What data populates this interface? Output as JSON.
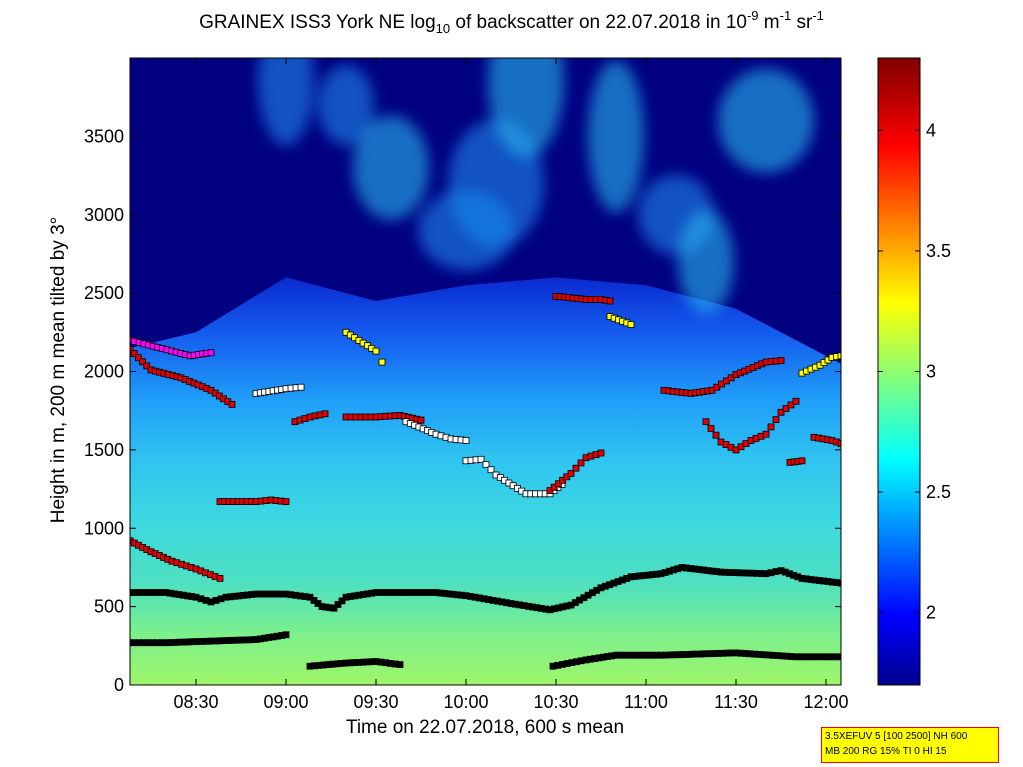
{
  "title": {
    "main": "GRAINEX ISS3 York NE log",
    "main_sub": "10",
    "middle": " of backscatter on 22.07.2018 in 10",
    "exp1": "-9",
    "unit1": " m",
    "exp2": "-1",
    "unit2": " sr",
    "exp3": "-1"
  },
  "info_box": {
    "line1": "3.5XEFUV 5 [100 2500] NH 600",
    "line2": "MB 200 RG 15% TI 0 HI 15"
  },
  "colors": {
    "plot_background": "#000080",
    "marker_black": "#000000",
    "marker_red": "#e00000",
    "marker_yellow": "#ffff00",
    "marker_white": "#ffffff",
    "marker_magenta": "#ff00ff",
    "marker_cyan": "#40e0e0"
  },
  "chart_data": {
    "type": "heatmap",
    "title": "GRAINEX ISS3 York NE log10 of backscatter on 22.07.2018 in 10^-9 m^-1 sr^-1",
    "xlabel": "Time on 22.07.2018, 600 s mean",
    "ylabel": "Height in m, 200 m mean tilted by 3°",
    "xlim_minutes": [
      488,
      725
    ],
    "ylim": [
      0,
      4000
    ],
    "x_ticks": [
      "08:30",
      "09:00",
      "09:30",
      "10:00",
      "10:30",
      "11:00",
      "11:30",
      "12:00"
    ],
    "x_tick_minutes": [
      510,
      540,
      570,
      600,
      630,
      660,
      690,
      720
    ],
    "y_ticks": [
      0,
      500,
      1000,
      1500,
      2000,
      2500,
      3000,
      3500
    ],
    "colorbar": {
      "colormap": "jet",
      "clim": [
        1.7,
        4.3
      ],
      "ticks": [
        2,
        2.5,
        3,
        3.5,
        4
      ],
      "tick_labels": [
        "2",
        "2.5",
        "3",
        "3.5",
        "4"
      ]
    },
    "backscatter_profile": {
      "heights": [
        0,
        250,
        500,
        750,
        1000,
        1250,
        1500,
        1750,
        2000,
        2250,
        2500
      ],
      "log10_values": [
        2.85,
        2.82,
        2.75,
        2.7,
        2.65,
        2.6,
        2.55,
        2.5,
        2.4,
        2.25,
        2.1
      ]
    },
    "aerosol_top_height": [
      {
        "t": 488,
        "h": 2150
      },
      {
        "t": 510,
        "h": 2250
      },
      {
        "t": 540,
        "h": 2600
      },
      {
        "t": 570,
        "h": 2450
      },
      {
        "t": 600,
        "h": 2550
      },
      {
        "t": 630,
        "h": 2600
      },
      {
        "t": 660,
        "h": 2550
      },
      {
        "t": 690,
        "h": 2400
      },
      {
        "t": 710,
        "h": 2200
      },
      {
        "t": 725,
        "h": 2050
      }
    ],
    "series": [
      {
        "color": "black",
        "points": [
          [
            488,
            590
          ],
          [
            500,
            590
          ],
          [
            510,
            560
          ],
          [
            515,
            530
          ],
          [
            520,
            560
          ],
          [
            530,
            580
          ],
          [
            540,
            580
          ],
          [
            548,
            560
          ],
          [
            552,
            500
          ],
          [
            556,
            490
          ],
          [
            560,
            560
          ],
          [
            570,
            590
          ],
          [
            590,
            590
          ],
          [
            600,
            570
          ],
          [
            615,
            520
          ],
          [
            628,
            480
          ],
          [
            635,
            510
          ],
          [
            645,
            620
          ],
          [
            655,
            690
          ],
          [
            665,
            710
          ],
          [
            672,
            750
          ],
          [
            685,
            720
          ],
          [
            700,
            710
          ],
          [
            705,
            730
          ],
          [
            712,
            680
          ],
          [
            725,
            650
          ]
        ]
      },
      {
        "color": "black",
        "points": [
          [
            488,
            270
          ],
          [
            500,
            270
          ],
          [
            515,
            280
          ],
          [
            530,
            290
          ],
          [
            540,
            320
          ]
        ]
      },
      {
        "color": "black",
        "points": [
          [
            548,
            120
          ],
          [
            560,
            140
          ],
          [
            570,
            150
          ],
          [
            578,
            130
          ]
        ]
      },
      {
        "color": "black",
        "points": [
          [
            629,
            120
          ],
          [
            640,
            160
          ],
          [
            650,
            190
          ],
          [
            665,
            190
          ],
          [
            690,
            205
          ],
          [
            710,
            180
          ],
          [
            725,
            180
          ]
        ]
      },
      {
        "color": "red",
        "points": [
          [
            488,
            920
          ],
          [
            495,
            850
          ],
          [
            502,
            790
          ],
          [
            510,
            740
          ],
          [
            518,
            680
          ]
        ]
      },
      {
        "color": "red",
        "points": [
          [
            518,
            1170
          ],
          [
            530,
            1170
          ],
          [
            535,
            1180
          ],
          [
            540,
            1170
          ]
        ]
      },
      {
        "color": "red",
        "points": [
          [
            488,
            2140
          ],
          [
            495,
            2010
          ],
          [
            505,
            1960
          ],
          [
            515,
            1880
          ],
          [
            522,
            1790
          ]
        ]
      },
      {
        "color": "white",
        "points": [
          [
            530,
            1860
          ],
          [
            540,
            1890
          ],
          [
            545,
            1900
          ]
        ]
      },
      {
        "color": "red",
        "points": [
          [
            543,
            1680
          ],
          [
            548,
            1710
          ],
          [
            553,
            1730
          ]
        ]
      },
      {
        "color": "red",
        "points": [
          [
            560,
            1710
          ],
          [
            565,
            1710
          ],
          [
            570,
            1710
          ],
          [
            578,
            1720
          ],
          [
            585,
            1690
          ]
        ]
      },
      {
        "color": "white",
        "points": [
          [
            580,
            1680
          ],
          [
            590,
            1600
          ],
          [
            595,
            1570
          ],
          [
            600,
            1560
          ]
        ]
      },
      {
        "color": "white",
        "points": [
          [
            600,
            1430
          ],
          [
            605,
            1440
          ],
          [
            610,
            1340
          ],
          [
            620,
            1220
          ],
          [
            628,
            1220
          ],
          [
            632,
            1280
          ]
        ]
      },
      {
        "color": "red",
        "points": [
          [
            628,
            1240
          ],
          [
            635,
            1350
          ],
          [
            640,
            1450
          ],
          [
            645,
            1480
          ]
        ]
      },
      {
        "color": "red",
        "points": [
          [
            630,
            2480
          ],
          [
            640,
            2460
          ],
          [
            645,
            2460
          ],
          [
            648,
            2450
          ]
        ]
      },
      {
        "color": "yellow",
        "points": [
          [
            648,
            2350
          ],
          [
            655,
            2300
          ]
        ]
      },
      {
        "color": "red",
        "points": [
          [
            666,
            1880
          ],
          [
            675,
            1860
          ],
          [
            682,
            1880
          ],
          [
            690,
            1980
          ],
          [
            700,
            2060
          ],
          [
            705,
            2070
          ]
        ]
      },
      {
        "color": "red",
        "points": [
          [
            680,
            1680
          ],
          [
            685,
            1550
          ],
          [
            690,
            1500
          ],
          [
            695,
            1560
          ],
          [
            700,
            1600
          ],
          [
            705,
            1740
          ],
          [
            710,
            1810
          ]
        ]
      },
      {
        "color": "red",
        "points": [
          [
            708,
            1420
          ],
          [
            712,
            1430
          ]
        ]
      },
      {
        "color": "red",
        "points": [
          [
            716,
            1580
          ],
          [
            722,
            1560
          ],
          [
            725,
            1540
          ]
        ]
      },
      {
        "color": "yellow",
        "points": [
          [
            712,
            1990
          ],
          [
            718,
            2040
          ],
          [
            722,
            2090
          ],
          [
            725,
            2100
          ]
        ]
      },
      {
        "color": "magenta",
        "points": [
          [
            488,
            2200
          ],
          [
            508,
            2100
          ],
          [
            515,
            2120
          ]
        ]
      },
      {
        "color": "yellow",
        "points": [
          [
            560,
            2250
          ],
          [
            570,
            2130
          ],
          [
            572,
            2060
          ]
        ]
      }
    ]
  }
}
